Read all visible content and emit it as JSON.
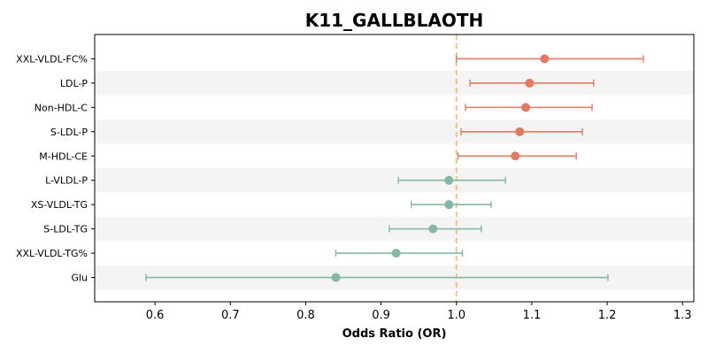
{
  "chart_data": {
    "type": "scatter",
    "title": "K11_GALLBLAOTH",
    "xlabel": "Odds Ratio (OR)",
    "ylabel": "",
    "xlim": [
      0.52,
      1.315
    ],
    "xticks": [
      0.6,
      0.7,
      0.8,
      0.9,
      1.0,
      1.1,
      1.2,
      1.3
    ],
    "xtick_labels": [
      "0.6",
      "0.7",
      "0.8",
      "0.9",
      "1.0",
      "1.1",
      "1.2",
      "1.3"
    ],
    "reference_line": 1.0,
    "grid": false,
    "row_banding": true,
    "colors": {
      "risk": "#e07b62",
      "protective": "#84b8a0",
      "reference": "#f5c27f",
      "band": "#f4f4f4"
    },
    "points": [
      {
        "label": "XXL-VLDL-FC%",
        "or": 1.117,
        "lo": 1.0,
        "hi": 1.248,
        "group": "risk"
      },
      {
        "label": "LDL-P",
        "or": 1.097,
        "lo": 1.018,
        "hi": 1.182,
        "group": "risk"
      },
      {
        "label": "Non-HDL-C",
        "or": 1.092,
        "lo": 1.012,
        "hi": 1.18,
        "group": "risk"
      },
      {
        "label": "S-LDL-P",
        "or": 1.084,
        "lo": 1.006,
        "hi": 1.167,
        "group": "risk"
      },
      {
        "label": "M-HDL-CE",
        "or": 1.078,
        "lo": 1.002,
        "hi": 1.159,
        "group": "risk"
      },
      {
        "label": "L-VLDL-P",
        "or": 0.99,
        "lo": 0.923,
        "hi": 1.065,
        "group": "protective"
      },
      {
        "label": "XS-VLDL-TG",
        "or": 0.99,
        "lo": 0.94,
        "hi": 1.046,
        "group": "protective"
      },
      {
        "label": "S-LDL-TG",
        "or": 0.969,
        "lo": 0.911,
        "hi": 1.033,
        "group": "protective"
      },
      {
        "label": "XXL-VLDL-TG%",
        "or": 0.92,
        "lo": 0.84,
        "hi": 1.008,
        "group": "protective"
      },
      {
        "label": "Glu",
        "or": 0.84,
        "lo": 0.588,
        "hi": 1.201,
        "group": "protective"
      }
    ]
  }
}
